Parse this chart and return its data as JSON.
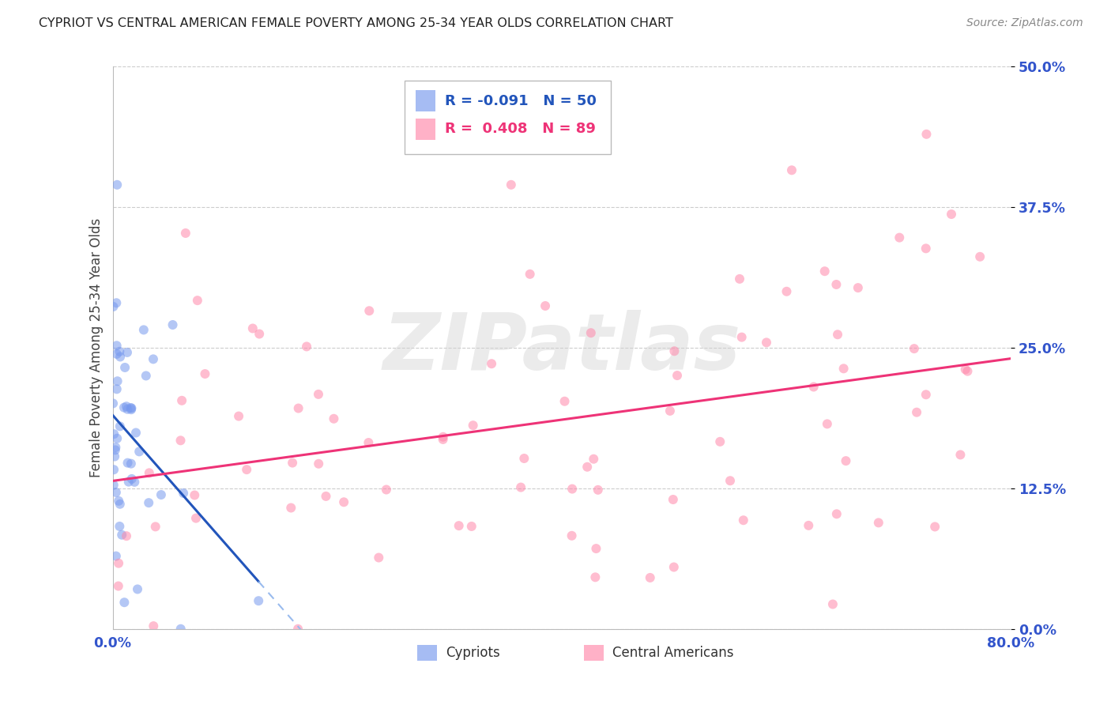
{
  "title": "CYPRIOT VS CENTRAL AMERICAN FEMALE POVERTY AMONG 25-34 YEAR OLDS CORRELATION CHART",
  "source": "Source: ZipAtlas.com",
  "ylabel": "Female Poverty Among 25-34 Year Olds",
  "xlim": [
    0.0,
    0.8
  ],
  "ylim": [
    0.0,
    0.5
  ],
  "yticks": [
    0.0,
    0.125,
    0.25,
    0.375,
    0.5
  ],
  "ytick_labels_right": [
    "0.0%",
    "12.5%",
    "25.0%",
    "37.5%",
    "50.0%"
  ],
  "xticks": [
    0.0,
    0.2,
    0.4,
    0.6,
    0.8
  ],
  "xtick_labels": [
    "0.0%",
    "",
    "",
    "",
    "80.0%"
  ],
  "grid_color": "#cccccc",
  "background_color": "#ffffff",
  "watermark": "ZIPatlas",
  "legend_R_cypriot": "-0.091",
  "legend_N_cypriot": "50",
  "legend_R_central": "0.408",
  "legend_N_central": "89",
  "cypriot_color": "#7799ee",
  "central_color": "#ff88aa",
  "cypriot_line_color": "#2255bb",
  "central_line_color": "#ee3377",
  "cypriot_dash_color": "#99bbee",
  "tick_color": "#3355cc",
  "title_color": "#222222",
  "source_color": "#888888",
  "cypriot_seed": 42,
  "central_seed": 99
}
